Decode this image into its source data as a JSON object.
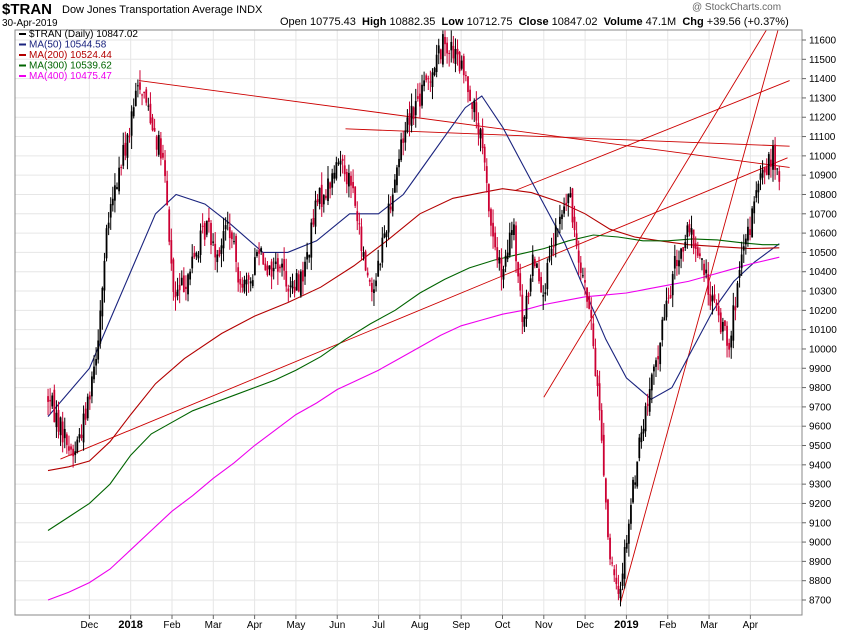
{
  "header": {
    "symbol": "$TRAN",
    "full_name": "Dow Jones Transportation Average INDX",
    "date": "30-Apr-2019",
    "open_label": "Open",
    "open": "10775.43",
    "high_label": "High",
    "high": "10882.35",
    "low_label": "Low",
    "low": "10712.75",
    "close_label": "Close",
    "close": "10847.02",
    "volume_label": "Volume",
    "volume": "47.1M",
    "chg_label": "Chg",
    "chg": "+39.56 (+0.37%)",
    "brand": "@ StockCharts.com"
  },
  "colors": {
    "up": "#000000",
    "down": "#cc0033",
    "ma50": "#1a237e",
    "ma200": "#b30000",
    "ma300": "#006400",
    "ma400": "#ee00ee",
    "trend": "#cc0000",
    "grid": "#e6e6e6"
  },
  "chart_data": {
    "type": "line",
    "title": "$TRAN (Daily) 10847.02",
    "xlabel": "",
    "ylabel": "",
    "ylim": [
      8600,
      11700
    ],
    "yticks": [
      8700,
      8800,
      8900,
      9000,
      9100,
      9200,
      9300,
      9400,
      9500,
      9600,
      9700,
      9800,
      9900,
      10000,
      10100,
      10200,
      10300,
      10400,
      10500,
      10600,
      10700,
      10800,
      10900,
      11000,
      11100,
      11200,
      11300,
      11400,
      11500,
      11600
    ],
    "months": [
      {
        "label": "Dec",
        "t": 1.0,
        "year": false
      },
      {
        "label": "2018",
        "t": 2.0,
        "year": true
      },
      {
        "label": "Feb",
        "t": 3.0,
        "year": false
      },
      {
        "label": "Mar",
        "t": 4.0,
        "year": false
      },
      {
        "label": "Apr",
        "t": 5.0,
        "year": false
      },
      {
        "label": "May",
        "t": 6.0,
        "year": false
      },
      {
        "label": "Jun",
        "t": 7.0,
        "year": false
      },
      {
        "label": "Jul",
        "t": 8.0,
        "year": false
      },
      {
        "label": "Aug",
        "t": 9.0,
        "year": false
      },
      {
        "label": "Sep",
        "t": 10.0,
        "year": false
      },
      {
        "label": "Oct",
        "t": 11.0,
        "year": false
      },
      {
        "label": "Nov",
        "t": 12.0,
        "year": false
      },
      {
        "label": "Dec",
        "t": 13.0,
        "year": false
      },
      {
        "label": "2019",
        "t": 14.0,
        "year": true
      },
      {
        "label": "Feb",
        "t": 15.0,
        "year": false
      },
      {
        "label": "Mar",
        "t": 16.0,
        "year": false
      },
      {
        "label": "Apr",
        "t": 17.0,
        "year": false
      }
    ],
    "price_path": [
      [
        0.0,
        9750
      ],
      [
        0.3,
        9600
      ],
      [
        0.6,
        9450
      ],
      [
        0.9,
        9650
      ],
      [
        1.2,
        10050
      ],
      [
        1.45,
        10650
      ],
      [
        1.75,
        10950
      ],
      [
        2.0,
        11150
      ],
      [
        2.2,
        11400
      ],
      [
        2.5,
        11200
      ],
      [
        2.8,
        10950
      ],
      [
        3.05,
        10250
      ],
      [
        3.3,
        10350
      ],
      [
        3.6,
        10500
      ],
      [
        3.85,
        10650
      ],
      [
        4.1,
        10500
      ],
      [
        4.35,
        10650
      ],
      [
        4.6,
        10400
      ],
      [
        4.85,
        10300
      ],
      [
        5.1,
        10550
      ],
      [
        5.35,
        10400
      ],
      [
        5.6,
        10450
      ],
      [
        5.9,
        10300
      ],
      [
        6.2,
        10400
      ],
      [
        6.5,
        10750
      ],
      [
        6.8,
        10850
      ],
      [
        7.1,
        11000
      ],
      [
        7.4,
        10800
      ],
      [
        7.6,
        10500
      ],
      [
        7.85,
        10300
      ],
      [
        8.1,
        10550
      ],
      [
        8.4,
        10900
      ],
      [
        8.7,
        11200
      ],
      [
        9.0,
        11300
      ],
      [
        9.3,
        11450
      ],
      [
        9.6,
        11600
      ],
      [
        9.9,
        11500
      ],
      [
        10.2,
        11350
      ],
      [
        10.5,
        11050
      ],
      [
        10.75,
        10600
      ],
      [
        11.0,
        10350
      ],
      [
        11.25,
        10650
      ],
      [
        11.5,
        10100
      ],
      [
        11.75,
        10500
      ],
      [
        12.0,
        10300
      ],
      [
        12.3,
        10600
      ],
      [
        12.6,
        10800
      ],
      [
        12.85,
        10500
      ],
      [
        13.1,
        10200
      ],
      [
        13.35,
        9700
      ],
      [
        13.6,
        8900
      ],
      [
        13.8,
        8700
      ],
      [
        14.05,
        9100
      ],
      [
        14.3,
        9500
      ],
      [
        14.6,
        9800
      ],
      [
        14.9,
        10150
      ],
      [
        15.2,
        10450
      ],
      [
        15.5,
        10600
      ],
      [
        15.75,
        10500
      ],
      [
        16.0,
        10300
      ],
      [
        16.25,
        10150
      ],
      [
        16.5,
        10050
      ],
      [
        16.75,
        10400
      ],
      [
        17.0,
        10650
      ],
      [
        17.2,
        10850
      ],
      [
        17.4,
        10950
      ],
      [
        17.55,
        11000
      ],
      [
        17.7,
        10850
      ]
    ],
    "series": [
      {
        "name": "MA(50)",
        "label": "MA(50) 10544.58",
        "colorKey": "ma50",
        "points": [
          [
            0.0,
            9650
          ],
          [
            1.0,
            9900
          ],
          [
            1.5,
            10150
          ],
          [
            2.1,
            10450
          ],
          [
            2.6,
            10700
          ],
          [
            3.1,
            10800
          ],
          [
            3.8,
            10750
          ],
          [
            4.4,
            10650
          ],
          [
            5.2,
            10500
          ],
          [
            5.8,
            10500
          ],
          [
            6.5,
            10560
          ],
          [
            7.3,
            10700
          ],
          [
            8.0,
            10700
          ],
          [
            8.6,
            10800
          ],
          [
            9.1,
            10950
          ],
          [
            9.6,
            11100
          ],
          [
            10.1,
            11250
          ],
          [
            10.5,
            11310
          ],
          [
            11.0,
            11150
          ],
          [
            11.5,
            10950
          ],
          [
            12.0,
            10750
          ],
          [
            12.5,
            10550
          ],
          [
            13.0,
            10300
          ],
          [
            13.5,
            10050
          ],
          [
            14.0,
            9850
          ],
          [
            14.6,
            9740
          ],
          [
            15.1,
            9800
          ],
          [
            15.6,
            10000
          ],
          [
            16.1,
            10200
          ],
          [
            16.6,
            10350
          ],
          [
            17.1,
            10450
          ],
          [
            17.7,
            10545
          ]
        ]
      },
      {
        "name": "MA(200)",
        "label": "MA(200) 10524.44",
        "colorKey": "ma200",
        "points": [
          [
            0.0,
            9370
          ],
          [
            0.5,
            9390
          ],
          [
            1.0,
            9420
          ],
          [
            1.5,
            9520
          ],
          [
            2.0,
            9660
          ],
          [
            2.6,
            9820
          ],
          [
            3.3,
            9950
          ],
          [
            4.2,
            10080
          ],
          [
            5.0,
            10170
          ],
          [
            5.8,
            10240
          ],
          [
            6.6,
            10320
          ],
          [
            7.4,
            10430
          ],
          [
            8.2,
            10560
          ],
          [
            9.0,
            10700
          ],
          [
            9.8,
            10780
          ],
          [
            10.5,
            10810
          ],
          [
            11.0,
            10830
          ],
          [
            11.7,
            10810
          ],
          [
            12.4,
            10760
          ],
          [
            13.0,
            10700
          ],
          [
            13.6,
            10620
          ],
          [
            14.2,
            10580
          ],
          [
            14.8,
            10560
          ],
          [
            15.5,
            10540
          ],
          [
            16.2,
            10530
          ],
          [
            17.0,
            10520
          ],
          [
            17.7,
            10524
          ]
        ]
      },
      {
        "name": "MA(300)",
        "label": "MA(300) 10539.62",
        "colorKey": "ma300",
        "points": [
          [
            0.0,
            9060
          ],
          [
            0.5,
            9130
          ],
          [
            1.0,
            9200
          ],
          [
            1.5,
            9300
          ],
          [
            2.0,
            9450
          ],
          [
            2.5,
            9560
          ],
          [
            3.0,
            9620
          ],
          [
            3.5,
            9680
          ],
          [
            4.0,
            9720
          ],
          [
            4.5,
            9760
          ],
          [
            5.0,
            9800
          ],
          [
            5.5,
            9840
          ],
          [
            6.0,
            9890
          ],
          [
            6.6,
            9960
          ],
          [
            7.2,
            10050
          ],
          [
            7.8,
            10130
          ],
          [
            8.4,
            10200
          ],
          [
            9.0,
            10290
          ],
          [
            9.6,
            10360
          ],
          [
            10.2,
            10420
          ],
          [
            10.8,
            10460
          ],
          [
            11.4,
            10490
          ],
          [
            12.0,
            10520
          ],
          [
            12.6,
            10560
          ],
          [
            13.2,
            10590
          ],
          [
            13.8,
            10580
          ],
          [
            14.4,
            10560
          ],
          [
            15.0,
            10560
          ],
          [
            15.6,
            10570
          ],
          [
            16.2,
            10565
          ],
          [
            16.8,
            10550
          ],
          [
            17.3,
            10540
          ],
          [
            17.7,
            10540
          ]
        ]
      },
      {
        "name": "MA(400)",
        "label": "MA(400) 10475.47",
        "colorKey": "ma400",
        "points": [
          [
            0.0,
            8700
          ],
          [
            0.5,
            8740
          ],
          [
            1.0,
            8790
          ],
          [
            1.5,
            8860
          ],
          [
            2.0,
            8960
          ],
          [
            2.5,
            9060
          ],
          [
            3.0,
            9160
          ],
          [
            3.5,
            9240
          ],
          [
            4.0,
            9330
          ],
          [
            4.5,
            9410
          ],
          [
            5.0,
            9500
          ],
          [
            5.5,
            9580
          ],
          [
            6.0,
            9660
          ],
          [
            6.5,
            9720
          ],
          [
            7.0,
            9790
          ],
          [
            7.5,
            9840
          ],
          [
            8.0,
            9890
          ],
          [
            8.5,
            9950
          ],
          [
            9.0,
            10010
          ],
          [
            9.5,
            10070
          ],
          [
            10.0,
            10120
          ],
          [
            10.5,
            10150
          ],
          [
            11.0,
            10180
          ],
          [
            11.5,
            10200
          ],
          [
            12.0,
            10230
          ],
          [
            12.5,
            10250
          ],
          [
            13.0,
            10270
          ],
          [
            13.5,
            10280
          ],
          [
            14.0,
            10290
          ],
          [
            14.5,
            10310
          ],
          [
            15.0,
            10330
          ],
          [
            15.5,
            10350
          ],
          [
            16.0,
            10380
          ],
          [
            16.5,
            10410
          ],
          [
            17.0,
            10440
          ],
          [
            17.7,
            10475
          ]
        ]
      }
    ],
    "trendlines": [
      {
        "from": [
          0.3,
          9430
        ],
        "to": [
          17.9,
          10990
        ]
      },
      {
        "from": [
          2.2,
          11390
        ],
        "to": [
          17.95,
          10940
        ]
      },
      {
        "from": [
          7.2,
          11140
        ],
        "to": [
          17.95,
          11050
        ]
      },
      {
        "from": [
          11.3,
          10820
        ],
        "to": [
          17.95,
          11390
        ]
      },
      {
        "from": [
          13.85,
          8680
        ],
        "to": [
          17.95,
          11870
        ]
      },
      {
        "from": [
          12.0,
          9750
        ],
        "to": [
          17.95,
          11850
        ]
      }
    ]
  }
}
